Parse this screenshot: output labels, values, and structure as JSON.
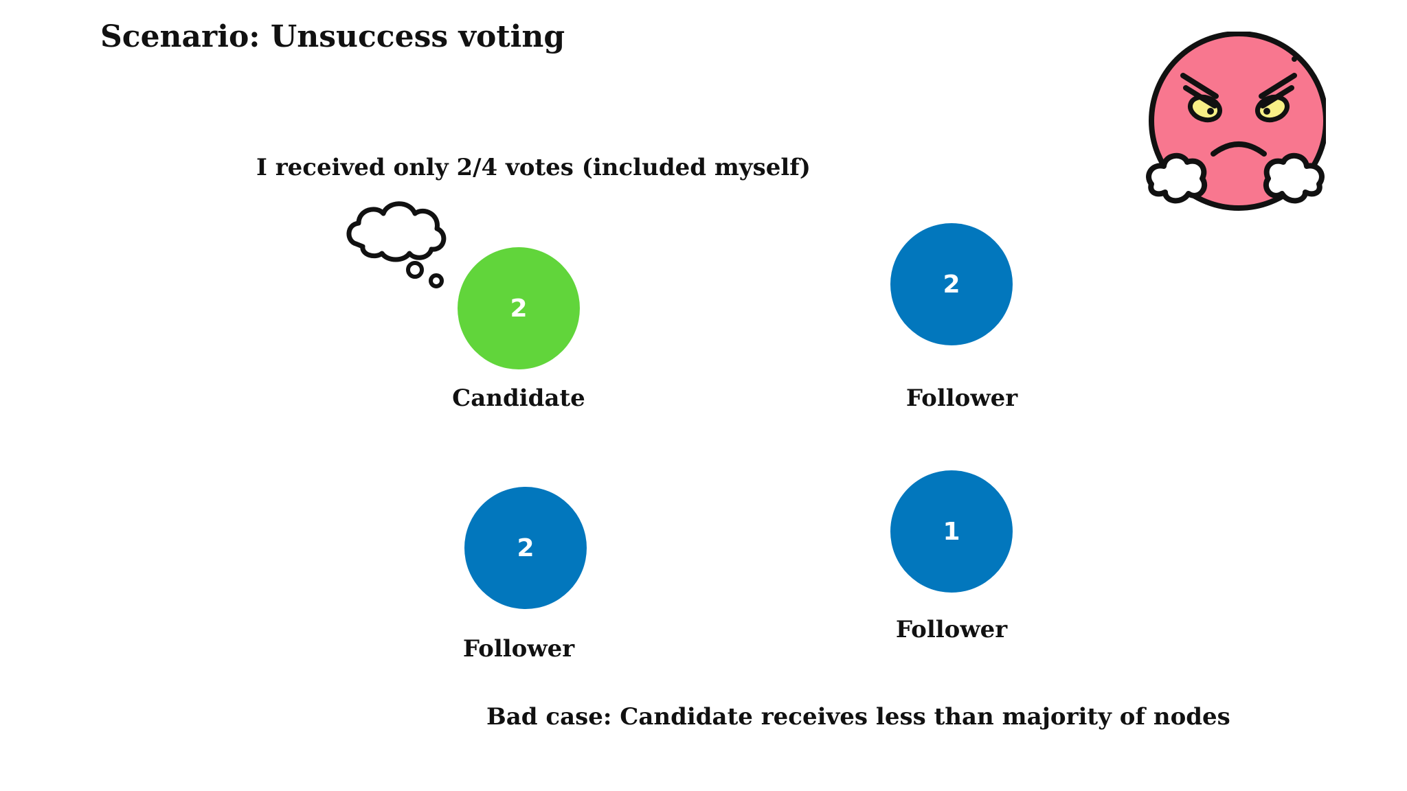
{
  "title": "Scenario: Unsuccess voting",
  "thought": "I received only 2/4 votes (included myself)",
  "nodes": [
    {
      "role": "Candidate",
      "term": "2",
      "color": "#61d53b"
    },
    {
      "role": "Follower",
      "term": "2",
      "color": "#0277bd"
    },
    {
      "role": "Follower",
      "term": "2",
      "color": "#0277bd"
    },
    {
      "role": "Follower",
      "term": "1",
      "color": "#0277bd"
    }
  ],
  "caption": "Bad case: Candidate receives less than majority of nodes",
  "icons": {
    "thought": "thought-bubble-icon",
    "emoji": "angry-face-icon"
  },
  "colors": {
    "angry_face": "#f8778f",
    "angry_eyes": "#f7ef86"
  }
}
